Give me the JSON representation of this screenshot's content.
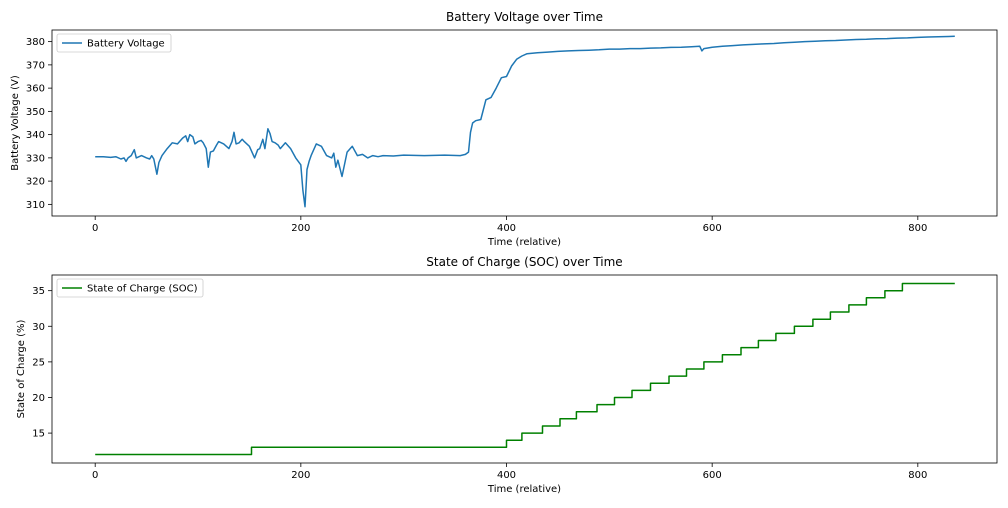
{
  "chart_data": [
    {
      "type": "line",
      "title": "Battery Voltage over Time",
      "xlabel": "Time (relative)",
      "ylabel": "Battery Voltage (V)",
      "xlim": [
        -42,
        877
      ],
      "ylim": [
        305,
        385
      ],
      "xticks": [
        0,
        200,
        400,
        600,
        800
      ],
      "yticks": [
        310,
        320,
        330,
        340,
        350,
        360,
        370,
        380
      ],
      "legend": "upper-left",
      "color": "#1f77b4",
      "series": [
        {
          "name": "Battery Voltage",
          "x": [
            0,
            8,
            15,
            20,
            25,
            28,
            30,
            32,
            35,
            38,
            40,
            45,
            50,
            53,
            55,
            57,
            60,
            62,
            65,
            70,
            75,
            80,
            85,
            88,
            90,
            92,
            95,
            97,
            100,
            103,
            105,
            108,
            110,
            112,
            115,
            118,
            120,
            125,
            130,
            133,
            135,
            137,
            140,
            143,
            145,
            150,
            155,
            158,
            160,
            163,
            165,
            168,
            170,
            172,
            175,
            178,
            180,
            185,
            190,
            195,
            200,
            202,
            204,
            206,
            208,
            210,
            215,
            220,
            225,
            230,
            232,
            234,
            236,
            240,
            245,
            250,
            255,
            260,
            265,
            270,
            275,
            280,
            290,
            300,
            320,
            340,
            355,
            360,
            363,
            365,
            367,
            370,
            375,
            380,
            385,
            390,
            395,
            400,
            405,
            410,
            415,
            420,
            425,
            430,
            440,
            450,
            460,
            470,
            480,
            490,
            500,
            510,
            520,
            530,
            540,
            550,
            560,
            570,
            580,
            588,
            590,
            592,
            595,
            600,
            610,
            620,
            630,
            640,
            650,
            660,
            670,
            680,
            690,
            700,
            710,
            720,
            730,
            740,
            750,
            760,
            770,
            780,
            790,
            800,
            810,
            820,
            830,
            836
          ],
          "values": [
            330.5,
            330.5,
            330.2,
            330.5,
            329.5,
            330.0,
            328.5,
            330.0,
            331.0,
            333.5,
            330.0,
            331.0,
            330.0,
            329.5,
            331.0,
            329.5,
            323.0,
            328.0,
            331.0,
            334.0,
            336.5,
            336.0,
            338.5,
            339.5,
            337.0,
            340.0,
            339.0,
            336.0,
            337.0,
            337.5,
            336.5,
            334.0,
            326.0,
            332.5,
            333.0,
            335.5,
            337.0,
            336.0,
            334.0,
            337.0,
            341.0,
            336.0,
            336.5,
            338.0,
            337.0,
            335.0,
            330.0,
            333.5,
            334.0,
            338.0,
            334.0,
            342.5,
            340.5,
            337.0,
            336.5,
            335.5,
            334.0,
            336.5,
            334.0,
            330.0,
            327.0,
            316.0,
            309.0,
            325.0,
            328.5,
            331.0,
            336.0,
            335.0,
            331.0,
            330.0,
            332.0,
            326.0,
            329.0,
            322.0,
            332.5,
            335.0,
            331.0,
            331.5,
            330.0,
            331.0,
            330.5,
            331.0,
            330.8,
            331.2,
            331.0,
            331.2,
            331.0,
            331.5,
            332.5,
            341.0,
            345.0,
            346.0,
            346.5,
            355.0,
            356.0,
            360.0,
            364.5,
            365.0,
            369.5,
            372.5,
            373.8,
            374.8,
            375.0,
            375.2,
            375.5,
            375.8,
            376.0,
            376.2,
            376.3,
            376.5,
            376.8,
            376.8,
            377.0,
            377.0,
            377.2,
            377.3,
            377.5,
            377.6,
            377.8,
            378.0,
            376.0,
            377.0,
            377.2,
            377.6,
            378.0,
            378.3,
            378.6,
            378.8,
            379.0,
            379.2,
            379.5,
            379.7,
            380.0,
            380.2,
            380.4,
            380.5,
            380.7,
            380.9,
            381.0,
            381.2,
            381.3,
            381.5,
            381.6,
            381.8,
            382.0,
            382.1,
            382.2,
            382.3
          ]
        }
      ]
    },
    {
      "type": "line",
      "title": "State of Charge (SOC) over Time",
      "xlabel": "Time (relative)",
      "ylabel": "State of Charge (%)",
      "xlim": [
        -42,
        877
      ],
      "ylim": [
        10.8,
        37.2
      ],
      "xticks": [
        0,
        200,
        400,
        600,
        800
      ],
      "yticks": [
        15,
        20,
        25,
        30,
        35
      ],
      "legend": "upper-left",
      "color": "#008000",
      "series": [
        {
          "name": "State of Charge (SOC)",
          "step_x": [
            0,
            152,
            400,
            415,
            435,
            452,
            468,
            488,
            505,
            522,
            540,
            558,
            575,
            592,
            610,
            628,
            645,
            662,
            680,
            698,
            715,
            733,
            750,
            768,
            785,
            800,
            836
          ],
          "step_values": [
            12,
            13,
            14,
            15,
            16,
            17,
            18,
            19,
            20,
            21,
            22,
            23,
            24,
            25,
            26,
            27,
            28,
            29,
            30,
            31,
            32,
            33,
            34,
            35,
            36,
            36,
            36
          ]
        }
      ]
    }
  ]
}
